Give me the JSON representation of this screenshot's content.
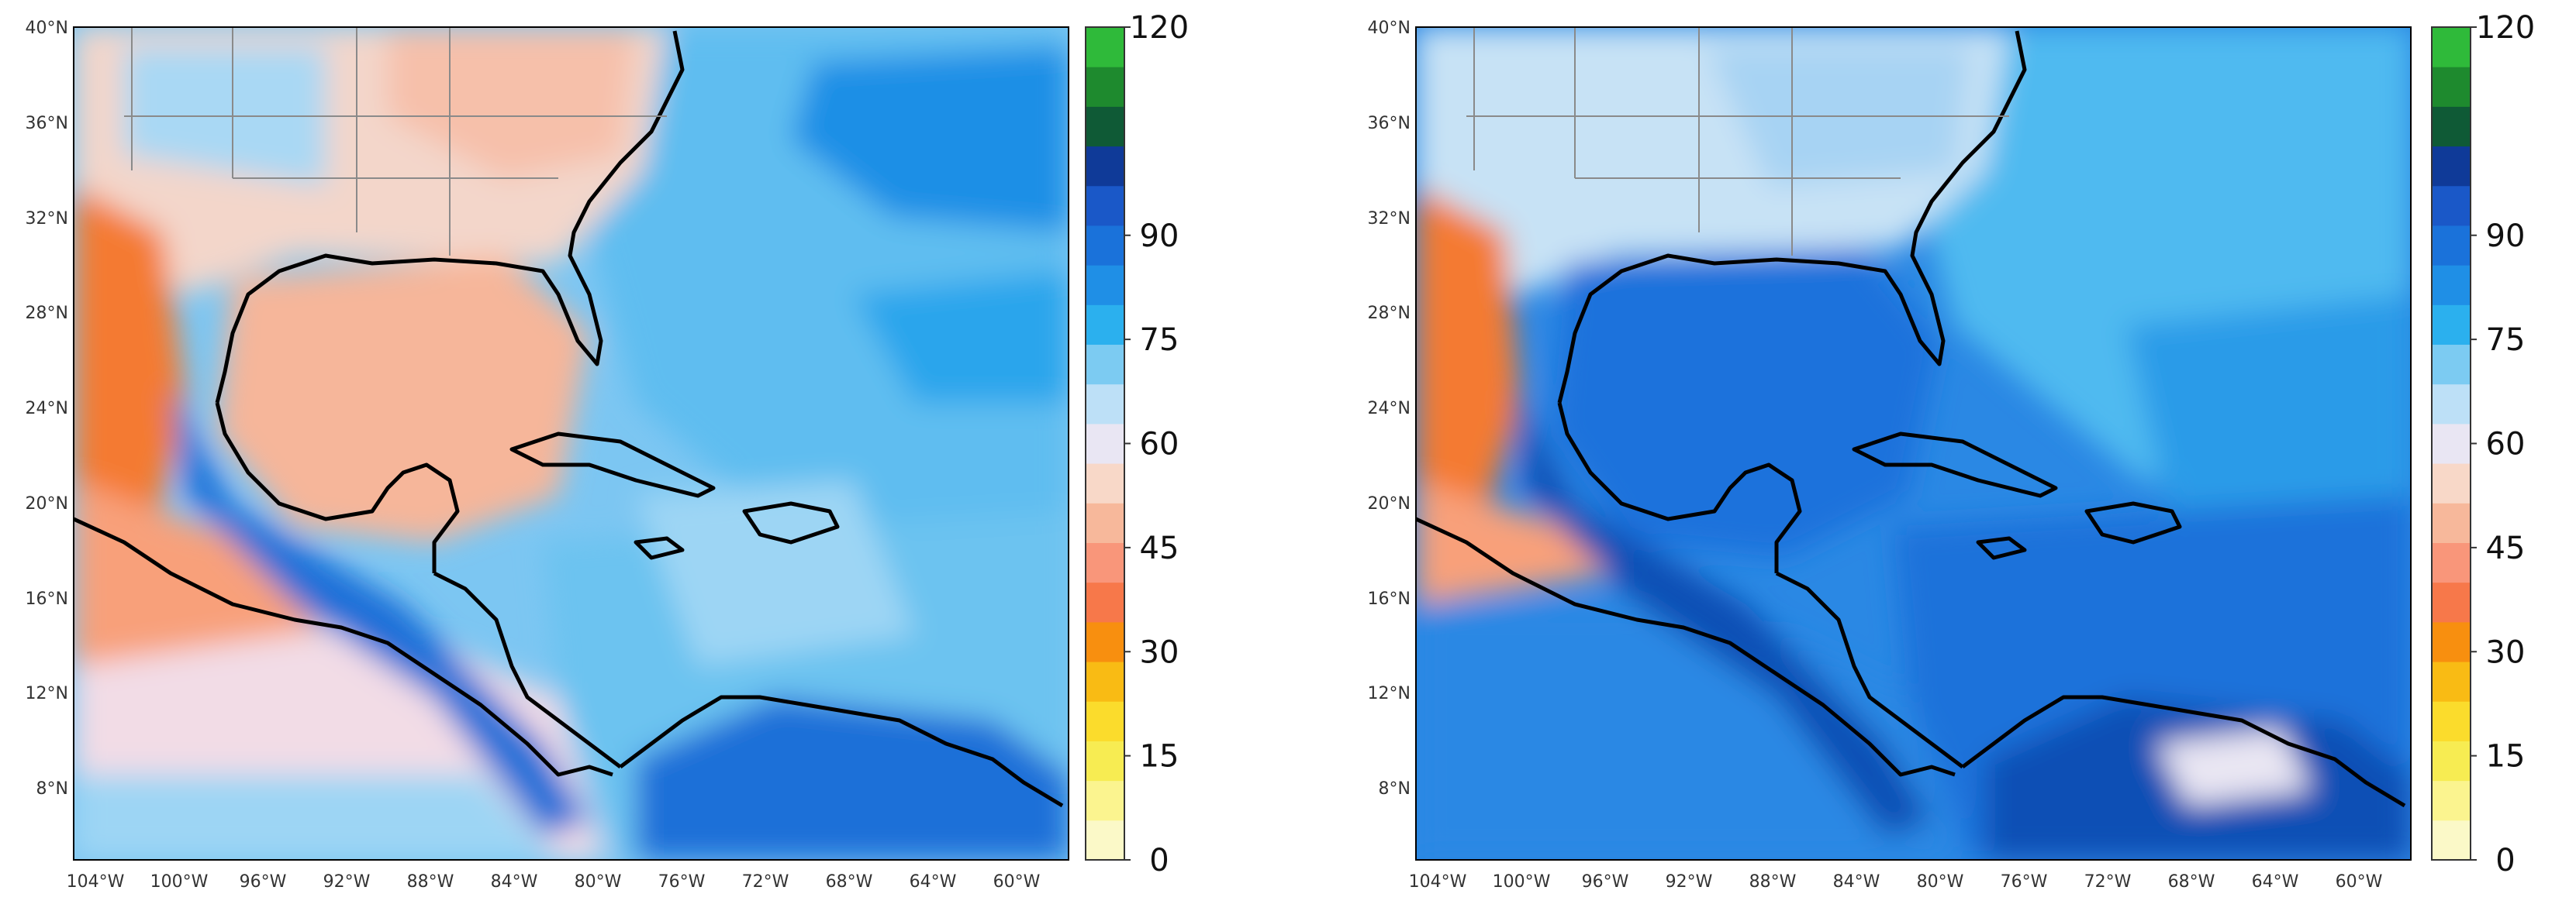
{
  "lat_labels": [
    "40°N",
    "36°N",
    "32°N",
    "28°N",
    "24°N",
    "20°N",
    "16°N",
    "12°N",
    "8°N"
  ],
  "lon_labels": [
    "104°W",
    "100°W",
    "96°W",
    "92°W",
    "88°W",
    "84°W",
    "80°W",
    "76°W",
    "72°W",
    "68°W",
    "64°W",
    "60°W"
  ],
  "colorbar": {
    "tick_labels": [
      "0",
      "15",
      "30",
      "45",
      "60",
      "75",
      "90",
      "120"
    ],
    "tick_values": [
      0,
      15,
      30,
      45,
      60,
      75,
      90,
      120
    ],
    "range": [
      0,
      120
    ],
    "colors": [
      "#fbf9c8",
      "#fbf48f",
      "#f7ec52",
      "#fbdc2c",
      "#f9bb14",
      "#f88f0f",
      "#f7784a",
      "#f9967a",
      "#f7b89b",
      "#f8d8c8",
      "#e9e6f3",
      "#bde0f7",
      "#7ccbf2",
      "#2bb0ee",
      "#1f8fe6",
      "#1a72da",
      "#1a58c8",
      "#0f3a98",
      "#0f5a36",
      "#1e8a2e",
      "#2fba3a"
    ]
  },
  "panels": [
    {
      "id": "left",
      "map_colors": {
        "ocean_north": "#5fbdf0",
        "ocean_south": "#9dd5f4",
        "gulf": "#f6b69a",
        "land_warm": "#f8a07a",
        "land_hot": "#f47a30",
        "land_cool": "#f3d6ca",
        "pacific": "#f2dce6",
        "caribbean": "#6cc3f0",
        "mountains": "#1d6fd8",
        "atlantic_deep": "#1f8fe6",
        "coast": "#000000"
      }
    },
    {
      "id": "right",
      "map_colors": {
        "ocean_north": "#4fbaf0",
        "ocean_south": "#2a85e4",
        "gulf": "#1e72dc",
        "land_warm": "#f8a07a",
        "land_hot": "#f47a30",
        "land_cool": "#c7e2f5",
        "pacific": "#2a88e4",
        "caribbean": "#1c72da",
        "mountains": "#0f4fb5",
        "atlantic_deep": "#2a9be8",
        "coast": "#000000"
      }
    }
  ]
}
